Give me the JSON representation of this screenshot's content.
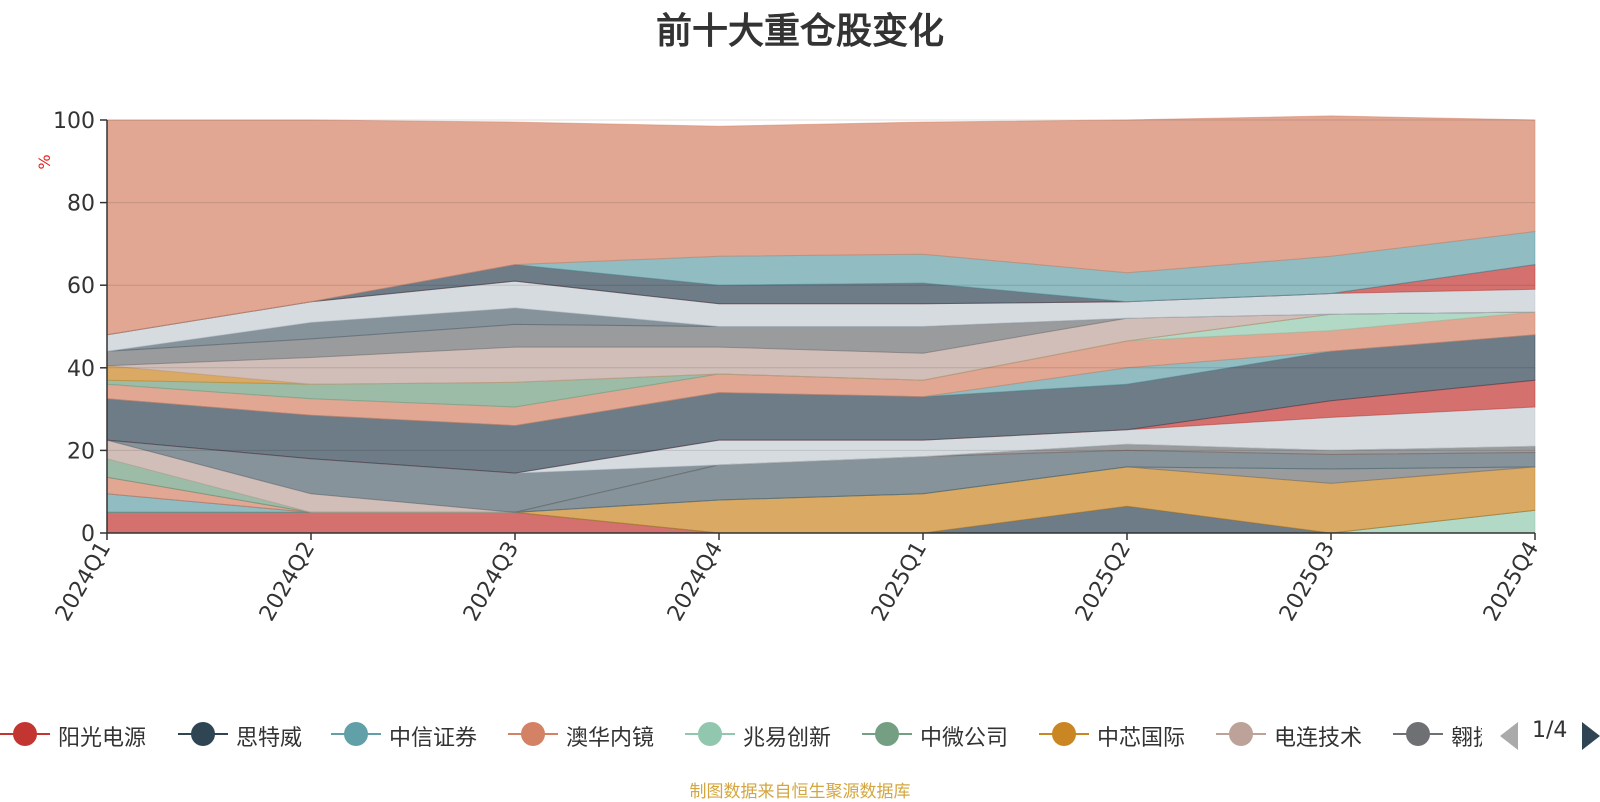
{
  "title": "前十大重仓股变化",
  "source": "制图数据来自恒生聚源数据库",
  "legend": {
    "items": [
      {
        "name": "阳光电源",
        "color": "#c23531"
      },
      {
        "name": "思特威",
        "color": "#2f4554"
      },
      {
        "name": "中信证券",
        "color": "#61a0a8"
      },
      {
        "name": "澳华内镜",
        "color": "#d48265"
      },
      {
        "name": "兆易创新",
        "color": "#91c7ae"
      },
      {
        "name": "中微公司",
        "color": "#749f83"
      },
      {
        "name": "中芯国际",
        "color": "#ca8622"
      },
      {
        "name": "电连技术",
        "color": "#bda29a"
      },
      {
        "name": "翱捷",
        "color": "#6e7074"
      }
    ],
    "page": "1/4"
  },
  "chart_data": {
    "type": "area",
    "stacked": true,
    "unit": "%",
    "categories": [
      "2024Q1",
      "2024Q2",
      "2024Q3",
      "2024Q4",
      "2025Q1",
      "2025Q2",
      "2025Q3",
      "2025Q4"
    ],
    "ylim": [
      0,
      100
    ],
    "yticks": [
      0,
      20,
      40,
      60,
      80,
      100
    ],
    "grid": true,
    "legend_position": "bottom",
    "series": [
      {
        "color": "#c23531",
        "values": [
          5,
          5,
          5,
          0,
          0,
          0,
          0,
          0
        ]
      },
      {
        "color": "#91c7ae",
        "values": [
          0,
          0,
          0,
          0,
          0,
          0,
          0,
          5.5
        ]
      },
      {
        "color": "#2f4554",
        "values": [
          0,
          0,
          0,
          0,
          0,
          6.5,
          0,
          0
        ]
      },
      {
        "color": "#ca8622",
        "values": [
          0,
          0,
          0,
          8,
          9.5,
          9.5,
          12,
          10.5
        ]
      },
      {
        "color": "#6e7074",
        "values": [
          0,
          0,
          0,
          0,
          0,
          0,
          3.5,
          0
        ]
      },
      {
        "color": "#61a0a8",
        "values": [
          4.5,
          0,
          0,
          0,
          0,
          0,
          0,
          0
        ]
      },
      {
        "color": "#546570",
        "values": [
          0,
          0,
          0,
          8.5,
          9,
          4,
          3.5,
          3.5
        ]
      },
      {
        "color": "#d48265",
        "values": [
          4,
          0,
          0,
          0,
          0,
          0,
          0,
          0
        ]
      },
      {
        "color": "#6e7074",
        "values": [
          0,
          0,
          0,
          0,
          0,
          1.5,
          1,
          1.5
        ]
      },
      {
        "color": "#749f83",
        "values": [
          4.5,
          0,
          0,
          0,
          0,
          0,
          0,
          0
        ]
      },
      {
        "color": "#bda29a",
        "values": [
          4.5,
          4.5,
          0,
          0,
          0,
          0,
          0,
          0
        ]
      },
      {
        "color": "#546570",
        "values": [
          0,
          8.5,
          9.5,
          0,
          0,
          0,
          0,
          0
        ]
      },
      {
        "color": "#c4ccd3",
        "values": [
          0,
          0,
          0,
          6,
          4,
          3.5,
          8,
          9.5
        ]
      },
      {
        "color": "#c23531",
        "values": [
          0,
          0,
          0,
          0,
          0,
          0,
          4,
          6.5
        ]
      },
      {
        "color": "#2f4554",
        "values": [
          10,
          10.5,
          11.5,
          11.5,
          10.5,
          11,
          12,
          11
        ]
      },
      {
        "color": "#61a0a8",
        "values": [
          0,
          0,
          0,
          0,
          0,
          4,
          0,
          0
        ]
      },
      {
        "color": "#d48265",
        "values": [
          3.5,
          4,
          4.5,
          4.5,
          4,
          6.5,
          5,
          5.5
        ]
      },
      {
        "color": "#91c7ae",
        "values": [
          0,
          0,
          0,
          0,
          0,
          0,
          4,
          0
        ]
      },
      {
        "color": "#749f83",
        "values": [
          1,
          3.5,
          6,
          0,
          0,
          0,
          0,
          0
        ]
      },
      {
        "color": "#ca8622",
        "values": [
          3.5,
          0,
          0,
          0,
          0,
          0,
          0,
          0
        ]
      },
      {
        "color": "#bda29a",
        "values": [
          0,
          6.5,
          8.5,
          6.5,
          6.5,
          5.5,
          0,
          0
        ]
      },
      {
        "color": "#6e7074",
        "values": [
          3.5,
          4.5,
          5.5,
          5,
          6.5,
          0,
          0,
          0
        ]
      },
      {
        "color": "#546570",
        "values": [
          0,
          4,
          4,
          0,
          0,
          0,
          0,
          0
        ]
      },
      {
        "color": "#c4ccd3",
        "values": [
          4,
          5,
          6.5,
          5.5,
          5.5,
          4,
          5,
          5.5
        ]
      },
      {
        "color": "#c23531",
        "values": [
          0,
          0,
          0,
          0,
          0,
          0,
          0,
          6
        ]
      },
      {
        "color": "#2f4554",
        "values": [
          0,
          0,
          4,
          4.5,
          5,
          0,
          0,
          0
        ]
      },
      {
        "color": "#61a0a8",
        "values": [
          0,
          0,
          0,
          7,
          7,
          7,
          9,
          8
        ]
      },
      {
        "color": "#d48265",
        "values": [
          52,
          44,
          34.5,
          31.5,
          32,
          37,
          34,
          27
        ]
      }
    ]
  }
}
